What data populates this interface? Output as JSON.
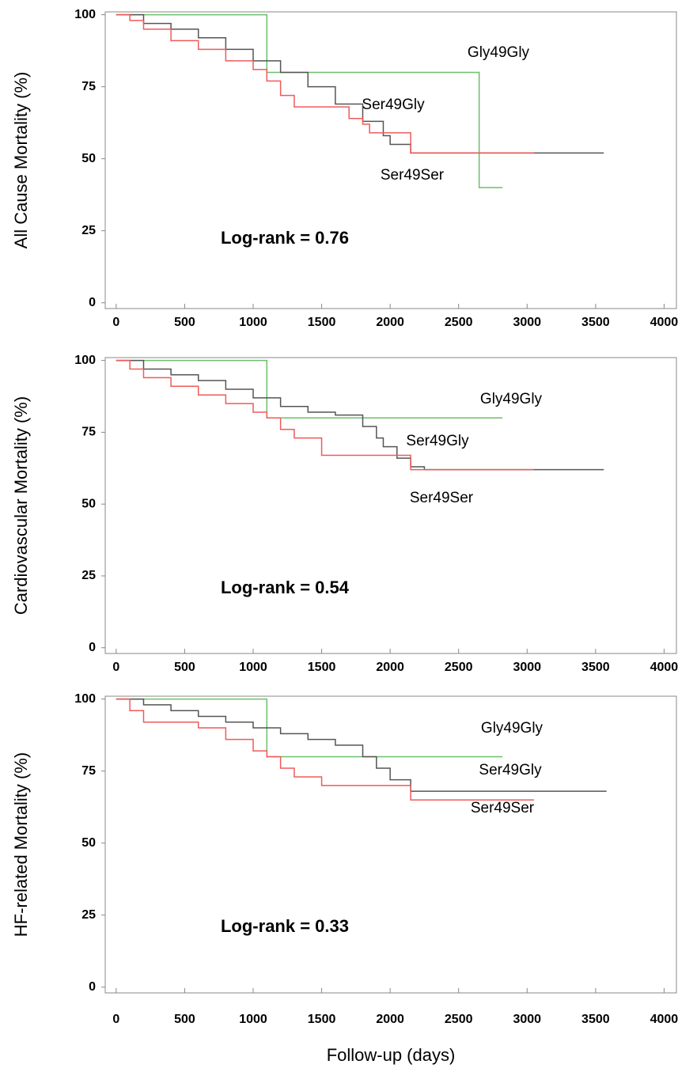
{
  "chart_data": [
    {
      "type": "step",
      "ylabel": "All Cause Mortality (%)",
      "annotation": "Log-rank  = 0.76",
      "xlim": [
        -80,
        4090
      ],
      "ylim": [
        -2,
        101
      ],
      "xticks": [
        0,
        500,
        1000,
        1500,
        2000,
        2500,
        3000,
        3500,
        4000
      ],
      "yticks": [
        0,
        25,
        50,
        75,
        100
      ],
      "series": [
        {
          "name": "Gly49Gly",
          "color": "#6cbf6c",
          "x": [
            0,
            1100,
            2650,
            2820
          ],
          "values": [
            100,
            80,
            40,
            40
          ]
        },
        {
          "name": "Ser49Gly",
          "color": "#555555",
          "x": [
            0,
            200,
            400,
            600,
            800,
            1000,
            1200,
            1400,
            1600,
            1800,
            1950,
            2000,
            2150,
            3560
          ],
          "values": [
            100,
            97,
            95,
            92,
            88,
            84,
            80,
            75,
            69,
            63,
            58,
            55,
            52,
            52
          ]
        },
        {
          "name": "Ser49Ser",
          "color": "#f05a5a",
          "x": [
            0,
            100,
            200,
            400,
            600,
            800,
            1000,
            1100,
            1200,
            1300,
            1500,
            1700,
            1800,
            1850,
            2150,
            3050
          ],
          "values": [
            100,
            98,
            95,
            91,
            88,
            84,
            81,
            77,
            72,
            68,
            68,
            64,
            62,
            59,
            52,
            52
          ]
        }
      ]
    },
    {
      "type": "step",
      "ylabel": "Cardiovascular Mortality (%)",
      "annotation": "Log-rank  = 0.54",
      "xlim": [
        -80,
        4090
      ],
      "ylim": [
        -2,
        101
      ],
      "xticks": [
        0,
        500,
        1000,
        1500,
        2000,
        2500,
        3000,
        3500,
        4000
      ],
      "yticks": [
        0,
        25,
        50,
        75,
        100
      ],
      "series": [
        {
          "name": "Gly49Gly",
          "color": "#6cbf6c",
          "x": [
            0,
            1100,
            2820
          ],
          "values": [
            100,
            80,
            80
          ]
        },
        {
          "name": "Ser49Gly",
          "color": "#555555",
          "x": [
            0,
            200,
            400,
            600,
            800,
            1000,
            1200,
            1400,
            1600,
            1800,
            1900,
            1950,
            2050,
            2150,
            2250,
            3560
          ],
          "values": [
            100,
            97,
            95,
            93,
            90,
            87,
            84,
            82,
            81,
            77,
            73,
            70,
            66,
            63,
            62,
            62
          ]
        },
        {
          "name": "Ser49Ser",
          "color": "#f05a5a",
          "x": [
            0,
            100,
            200,
            400,
            600,
            800,
            1000,
            1100,
            1200,
            1300,
            1500,
            2150,
            3050
          ],
          "values": [
            100,
            97,
            94,
            91,
            88,
            85,
            82,
            80,
            76,
            73,
            67,
            62,
            62
          ]
        }
      ]
    },
    {
      "type": "step",
      "ylabel": "HF-related Mortality (%)",
      "annotation": "Log-rank  = 0.33",
      "xlabel": "Follow-up (days)",
      "xlim": [
        -80,
        4090
      ],
      "ylim": [
        -2,
        101
      ],
      "xticks": [
        0,
        500,
        1000,
        1500,
        2000,
        2500,
        3000,
        3500,
        4000
      ],
      "yticks": [
        0,
        25,
        50,
        75,
        100
      ],
      "series": [
        {
          "name": "Gly49Gly",
          "color": "#6cbf6c",
          "x": [
            0,
            1100,
            2820
          ],
          "values": [
            100,
            80,
            80
          ]
        },
        {
          "name": "Ser49Gly",
          "color": "#555555",
          "x": [
            0,
            200,
            400,
            600,
            800,
            1000,
            1200,
            1400,
            1600,
            1800,
            1900,
            2000,
            2150,
            3580
          ],
          "values": [
            100,
            98,
            96,
            94,
            92,
            90,
            88,
            86,
            84,
            80,
            76,
            72,
            68,
            68
          ]
        },
        {
          "name": "Ser49Ser",
          "color": "#f05a5a",
          "x": [
            0,
            100,
            200,
            600,
            800,
            1000,
            1100,
            1200,
            1300,
            1500,
            2150,
            3050
          ],
          "values": [
            100,
            96,
            92,
            90,
            86,
            82,
            80,
            76,
            73,
            70,
            65,
            65
          ]
        }
      ]
    }
  ]
}
